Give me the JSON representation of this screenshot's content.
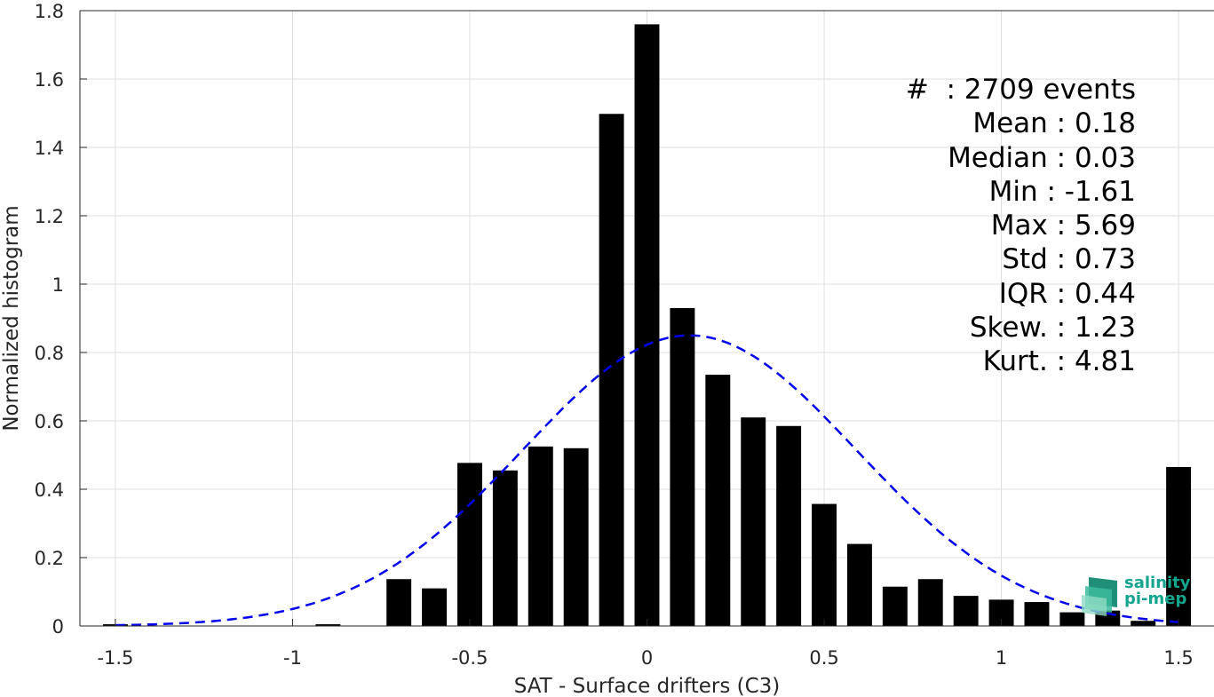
{
  "chart_data": {
    "type": "bar",
    "xlabel": "SAT - Surface drifters (C3)",
    "ylabel": "Normalized histogram",
    "xlim": [
      -1.6,
      1.6
    ],
    "ylim": [
      0,
      1.8
    ],
    "xticks": [
      "-1.5",
      "-1",
      "-0.5",
      "0",
      "0.5",
      "1",
      "1.5"
    ],
    "yticks": [
      "0",
      "0.2",
      "0.4",
      "0.6",
      "0.8",
      "1",
      "1.2",
      "1.4",
      "1.6",
      "1.8"
    ],
    "grid": true,
    "bin_width": 0.1,
    "bins": [
      {
        "x": -1.5,
        "value": 0.005
      },
      {
        "x": -0.9,
        "value": 0.005
      },
      {
        "x": -0.7,
        "value": 0.137
      },
      {
        "x": -0.6,
        "value": 0.11
      },
      {
        "x": -0.5,
        "value": 0.477
      },
      {
        "x": -0.4,
        "value": 0.455
      },
      {
        "x": -0.3,
        "value": 0.525
      },
      {
        "x": -0.2,
        "value": 0.52
      },
      {
        "x": -0.1,
        "value": 1.498
      },
      {
        "x": 0.0,
        "value": 1.76
      },
      {
        "x": 0.1,
        "value": 0.93
      },
      {
        "x": 0.2,
        "value": 0.735
      },
      {
        "x": 0.3,
        "value": 0.61
      },
      {
        "x": 0.4,
        "value": 0.585
      },
      {
        "x": 0.5,
        "value": 0.357
      },
      {
        "x": 0.6,
        "value": 0.24
      },
      {
        "x": 0.7,
        "value": 0.115
      },
      {
        "x": 0.8,
        "value": 0.137
      },
      {
        "x": 0.9,
        "value": 0.088
      },
      {
        "x": 1.0,
        "value": 0.077
      },
      {
        "x": 1.1,
        "value": 0.07
      },
      {
        "x": 1.2,
        "value": 0.04
      },
      {
        "x": 1.3,
        "value": 0.045
      },
      {
        "x": 1.4,
        "value": 0.015
      },
      {
        "x": 1.5,
        "value": 0.465
      }
    ],
    "fit_curve": {
      "style": "dashed",
      "color": "#0000ee",
      "mean": 0.12,
      "std": 0.47,
      "peak": 0.85,
      "x_range": [
        -1.5,
        1.5
      ]
    }
  },
  "stats": [
    "#  : 2709 events",
    "Mean : 0.18",
    "Median : 0.03",
    "Min : -1.61",
    "Max : 5.69",
    "Std : 0.73",
    "IQR : 0.44",
    "Skew. : 1.23",
    "Kurt. : 4.81"
  ],
  "logo": {
    "line1": "salinity",
    "line2": "pi-mep"
  },
  "colors": {
    "bars": "#000000",
    "fit": "#0000ee",
    "grid": "#dedede",
    "axis": "#262626",
    "logo": "#14a58f"
  }
}
